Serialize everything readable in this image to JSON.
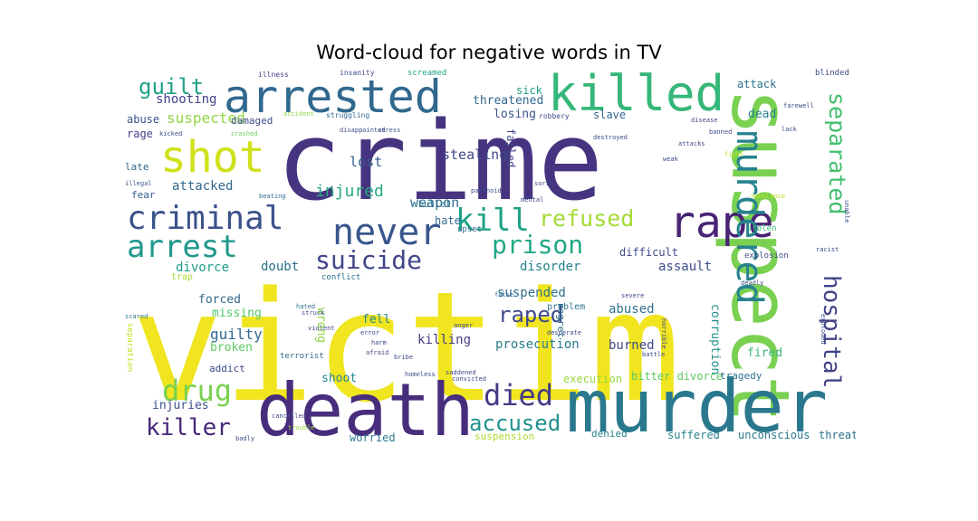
{
  "chart_data": {
    "type": "wordcloud",
    "title": "Word-cloud for negative words in TV",
    "words": [
      {
        "text": "victim",
        "color": "#f0e51f"
      },
      {
        "text": "crime",
        "color": "#463480"
      },
      {
        "text": "suspect",
        "color": "#7ad151"
      },
      {
        "text": "murder",
        "color": "#2a788e"
      },
      {
        "text": "death",
        "color": "#472d7b"
      },
      {
        "text": "killed",
        "color": "#35b779"
      },
      {
        "text": "arrested",
        "color": "#31688e"
      },
      {
        "text": "shot",
        "color": "#d0e11c"
      },
      {
        "text": "rape",
        "color": "#482475"
      },
      {
        "text": "murdered",
        "color": "#26828e"
      },
      {
        "text": "criminal",
        "color": "#3b528b"
      },
      {
        "text": "never",
        "color": "#39568c"
      },
      {
        "text": "arrest",
        "color": "#1f988b"
      },
      {
        "text": "kill",
        "color": "#1fa187"
      },
      {
        "text": "suicide",
        "color": "#404688"
      },
      {
        "text": "separated",
        "color": "#44bf70"
      },
      {
        "text": "hospital",
        "color": "#414487"
      },
      {
        "text": "prison",
        "color": "#22a884"
      },
      {
        "text": "refused",
        "color": "#a5db36"
      },
      {
        "text": "died",
        "color": "#443a83"
      },
      {
        "text": "accused",
        "color": "#21918c"
      },
      {
        "text": "drug",
        "color": "#7ad151"
      },
      {
        "text": "killer",
        "color": "#482878"
      },
      {
        "text": "raped",
        "color": "#3e4989"
      },
      {
        "text": "guilt",
        "color": "#1fa188"
      },
      {
        "text": "suspected",
        "color": "#90d743"
      },
      {
        "text": "injured",
        "color": "#25ab82"
      },
      {
        "text": "weapon",
        "color": "#2c728e"
      },
      {
        "text": "stealing",
        "color": "#3e4a89"
      },
      {
        "text": "lost",
        "color": "#355f8d"
      },
      {
        "text": "shooting",
        "color": "#424186"
      },
      {
        "text": "attacked",
        "color": "#31688e"
      },
      {
        "text": "divorce",
        "color": "#1f9e89"
      },
      {
        "text": "doubt",
        "color": "#2d708e"
      },
      {
        "text": "disorder",
        "color": "#26828e"
      },
      {
        "text": "assault",
        "color": "#3d4d8a"
      },
      {
        "text": "difficult",
        "color": "#3e4989"
      },
      {
        "text": "lose",
        "color": "#424186"
      },
      {
        "text": "guilty",
        "color": "#31688e"
      },
      {
        "text": "suspended",
        "color": "#2e6f8e"
      },
      {
        "text": "killing",
        "color": "#433e85"
      },
      {
        "text": "prosecution",
        "color": "#287c8e"
      },
      {
        "text": "abused",
        "color": "#2d708e"
      },
      {
        "text": "burned",
        "color": "#3f4788"
      },
      {
        "text": "missing",
        "color": "#52c569"
      },
      {
        "text": "forced",
        "color": "#31688e"
      },
      {
        "text": "broken",
        "color": "#5ec962"
      },
      {
        "text": "fell",
        "color": "#24868e"
      },
      {
        "text": "wrong",
        "color": "#8fd744"
      },
      {
        "text": "injuries",
        "color": "#3b528b"
      },
      {
        "text": "shoot",
        "color": "#26828e"
      },
      {
        "text": "worried",
        "color": "#2a788e"
      },
      {
        "text": "suffered",
        "color": "#25848e"
      },
      {
        "text": "unconscious",
        "color": "#2a788e"
      },
      {
        "text": "threat",
        "color": "#2c728e"
      },
      {
        "text": "suspension",
        "color": "#addc30"
      },
      {
        "text": "denied",
        "color": "#26828e"
      },
      {
        "text": "execution",
        "color": "#9bd93c"
      },
      {
        "text": "bitter divorce",
        "color": "#5ec962"
      },
      {
        "text": "tragedy",
        "color": "#2c728e"
      },
      {
        "text": "fired",
        "color": "#3aba76"
      },
      {
        "text": "corruption",
        "color": "#21918c"
      },
      {
        "text": "dead",
        "color": "#277f8e"
      },
      {
        "text": "losing",
        "color": "#3b528b"
      },
      {
        "text": "threatened",
        "color": "#31688e"
      },
      {
        "text": "sick",
        "color": "#1fa187"
      },
      {
        "text": "slave",
        "color": "#32658e"
      },
      {
        "text": "attack",
        "color": "#2c728e"
      },
      {
        "text": "abuse",
        "color": "#3a548c"
      },
      {
        "text": "rage",
        "color": "#424086"
      },
      {
        "text": "late",
        "color": "#31688e"
      },
      {
        "text": "fear",
        "color": "#355e8d"
      },
      {
        "text": "trap",
        "color": "#a8db34"
      },
      {
        "text": "addict",
        "color": "#3e4a89"
      },
      {
        "text": "damaged",
        "color": "#3e4a89"
      },
      {
        "text": "bullet",
        "color": "#2e6e8e"
      },
      {
        "text": "hate",
        "color": "#31688e"
      },
      {
        "text": "failed",
        "color": "#3f4889"
      },
      {
        "text": "regret",
        "color": "#2c728e"
      },
      {
        "text": "conflict",
        "color": "#2c728e"
      },
      {
        "text": "upset",
        "color": "#31688e"
      },
      {
        "text": "problem",
        "color": "#2c728e"
      },
      {
        "text": "terrorist",
        "color": "#31688e"
      },
      {
        "text": "separation",
        "color": "#c2df23"
      },
      {
        "text": "explosion",
        "color": "#3d4d8a"
      },
      {
        "text": "blinded",
        "color": "#3e4989"
      },
      {
        "text": "screamed",
        "color": "#1fa187"
      },
      {
        "text": "robbery",
        "color": "#3e4a89"
      },
      {
        "text": "struggling",
        "color": "#31688e"
      },
      {
        "text": "stolen",
        "color": "#3aba76"
      },
      {
        "text": "illness",
        "color": "#433e85"
      },
      {
        "text": "insanity",
        "color": "#3e4a89"
      },
      {
        "text": "crashed",
        "color": "#6ccd5a"
      },
      {
        "text": "accident",
        "color": "#8fd744"
      },
      {
        "text": "kicked",
        "color": "#3e4a89"
      },
      {
        "text": "illegal",
        "color": "#3b528b"
      },
      {
        "text": "beating",
        "color": "#2e6e8e"
      },
      {
        "text": "scared",
        "color": "#2a788e"
      },
      {
        "text": "hated",
        "color": "#2e6e8e"
      },
      {
        "text": "violent",
        "color": "#3e4a89"
      },
      {
        "text": "struck",
        "color": "#3e4a89"
      },
      {
        "text": "anger",
        "color": "#3e4989"
      },
      {
        "text": "false",
        "color": "#31688e"
      },
      {
        "text": "severe",
        "color": "#3e4a89"
      },
      {
        "text": "racist",
        "color": "#3e4a89"
      },
      {
        "text": "deadly",
        "color": "#3e4a89"
      },
      {
        "text": "homeless",
        "color": "#3e4a89"
      },
      {
        "text": "convicted",
        "color": "#3e4a89"
      },
      {
        "text": "saddened",
        "color": "#3e4a89"
      },
      {
        "text": "cancelled",
        "color": "#3e4a89"
      },
      {
        "text": "trouble",
        "color": "#9bd93c"
      },
      {
        "text": "badly",
        "color": "#3e4a89"
      },
      {
        "text": "bribe",
        "color": "#3e4a89"
      },
      {
        "text": "horrible",
        "color": "#3e4a89"
      },
      {
        "text": "afraid",
        "color": "#3e4a89"
      },
      {
        "text": "harm",
        "color": "#3e4a89"
      },
      {
        "text": "error",
        "color": "#3e4a89"
      },
      {
        "text": "desperate",
        "color": "#3e4a89"
      },
      {
        "text": "battle",
        "color": "#3e4a89"
      },
      {
        "text": "fight",
        "color": "#bddf26"
      },
      {
        "text": "lack",
        "color": "#3e4a89"
      },
      {
        "text": "farewell",
        "color": "#3e4a89"
      },
      {
        "text": "disease",
        "color": "#3e4a89"
      },
      {
        "text": "ambulance",
        "color": "#bddf26"
      },
      {
        "text": "unable",
        "color": "#3e4a89"
      },
      {
        "text": "paranoid",
        "color": "#3e4a89"
      },
      {
        "text": "mental",
        "color": "#3e4a89"
      },
      {
        "text": "sorry",
        "color": "#3e4a89"
      },
      {
        "text": "exploded",
        "color": "#3e4a89"
      },
      {
        "text": "weak",
        "color": "#3e4a89"
      },
      {
        "text": "destroyed",
        "color": "#3e4a89"
      },
      {
        "text": "disappointed",
        "color": "#3e4a89"
      },
      {
        "text": "stress",
        "color": "#3e4a89"
      },
      {
        "text": "attacks",
        "color": "#3e4a89"
      },
      {
        "text": "banned",
        "color": "#3e4a89"
      }
    ]
  }
}
